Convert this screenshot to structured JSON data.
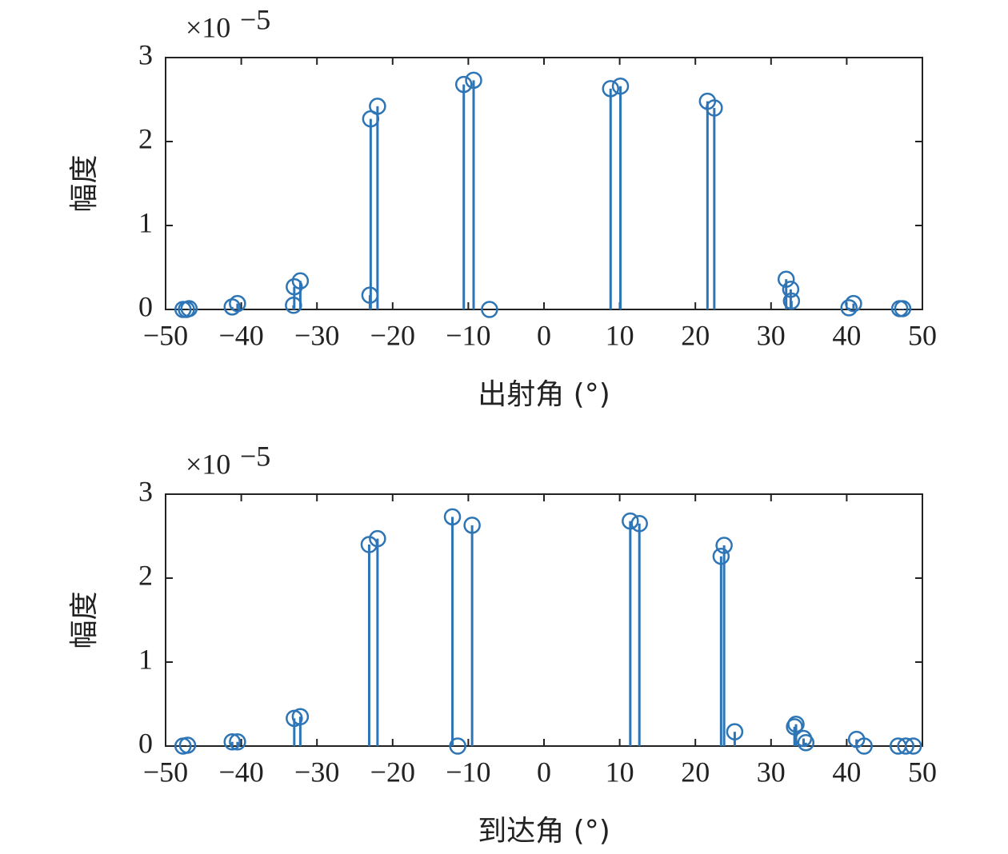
{
  "chart_data": [
    {
      "type": "stem",
      "color": "#2e75b6",
      "y_label": "幅度",
      "x_label": "出射角 (°)",
      "multiplier": "×10",
      "multiplier_exp": "−5",
      "x": [
        -47.7,
        -47.25,
        -46.9,
        -41.2,
        -40.5,
        -33.1,
        -33.0,
        -32.2,
        -23.0,
        -22.9,
        -22.0,
        -10.6,
        -9.3,
        -7.2,
        8.8,
        10.1,
        21.6,
        22.5,
        32.0,
        32.6,
        32.7,
        40.3,
        40.9,
        47.0,
        47.4
      ],
      "values": [
        0,
        0,
        0.01,
        0.03,
        0.07,
        0.05,
        0.27,
        0.34,
        0.17,
        2.27,
        2.42,
        2.68,
        2.73,
        0,
        2.63,
        2.66,
        2.48,
        2.4,
        0.36,
        0.24,
        0.1,
        0.02,
        0.07,
        0.01,
        0.01
      ],
      "xlim": [
        -50,
        50
      ],
      "ylim": [
        0,
        3
      ],
      "xticks": [
        {
          "value": -50,
          "label": "−50"
        },
        {
          "value": -40,
          "label": "−40"
        },
        {
          "value": -30,
          "label": "−30"
        },
        {
          "value": -20,
          "label": "−20"
        },
        {
          "value": -10,
          "label": "−10"
        },
        0,
        10,
        20,
        30,
        40,
        50
      ],
      "yticks": [
        0,
        1,
        2,
        3
      ]
    },
    {
      "type": "stem",
      "color": "#2e75b6",
      "y_label": "幅度",
      "x_label": "到达角 (°)",
      "multiplier": "×10",
      "multiplier_exp": "−5",
      "x": [
        -47.7,
        -47.1,
        -41.2,
        -40.5,
        -33.0,
        -32.2,
        -23.1,
        -22.0,
        -12.1,
        -11.4,
        -9.5,
        11.4,
        12.6,
        23.4,
        23.8,
        25.2,
        33.1,
        33.3,
        34.3,
        34.6,
        41.3,
        42.3,
        46.8,
        47.8,
        48.8
      ],
      "values": [
        0,
        0.01,
        0.05,
        0.05,
        0.33,
        0.35,
        2.4,
        2.47,
        2.73,
        0,
        2.63,
        2.68,
        2.65,
        2.26,
        2.39,
        0.17,
        0.23,
        0.26,
        0.09,
        0.04,
        0.08,
        0,
        0,
        0,
        0
      ],
      "xlim": [
        -50,
        50
      ],
      "ylim": [
        0,
        3
      ],
      "xticks": [
        {
          "value": -50,
          "label": "−50"
        },
        {
          "value": -40,
          "label": "−40"
        },
        {
          "value": -30,
          "label": "−30"
        },
        {
          "value": -20,
          "label": "−20"
        },
        {
          "value": -10,
          "label": "−10"
        },
        0,
        10,
        20,
        30,
        40,
        50
      ],
      "yticks": [
        0,
        1,
        2,
        3
      ]
    }
  ]
}
